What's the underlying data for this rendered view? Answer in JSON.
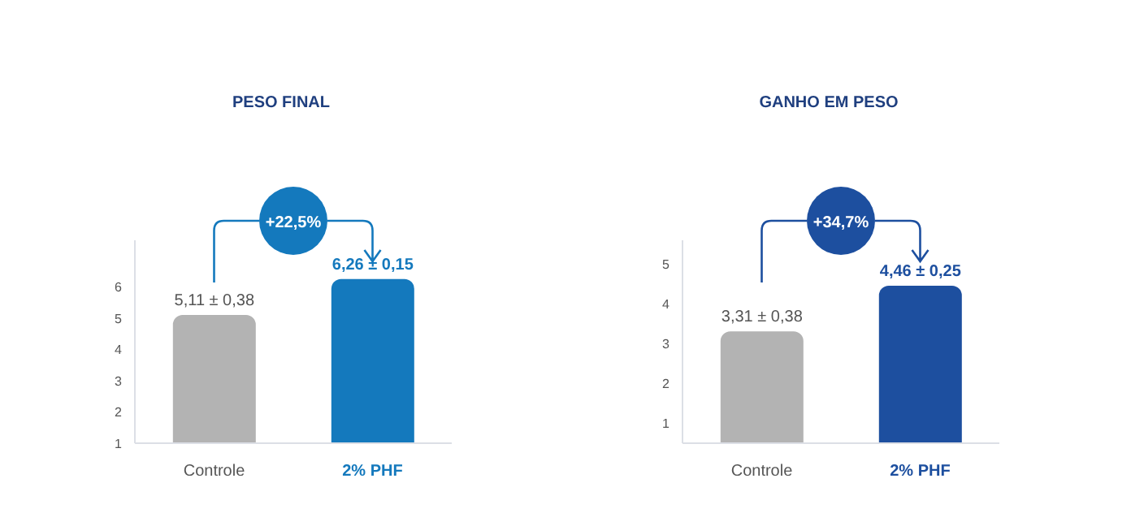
{
  "chart_data": [
    {
      "type": "bar",
      "title": "PESO FINAL",
      "categories": [
        "Controle",
        "2% PHF"
      ],
      "values": [
        5.11,
        6.26
      ],
      "value_labels": [
        "5,11 ± 0,38",
        "6,26 ± 0,15"
      ],
      "colors": [
        "#b3b3b3",
        "#1479bd"
      ],
      "ylim": [
        1,
        7.5
      ],
      "yticks": [
        1,
        2,
        3,
        4,
        5,
        6
      ],
      "grid": false,
      "legend": false,
      "annotations": [
        "+22,5%"
      ]
    },
    {
      "type": "bar",
      "title": "GANHO EM PESO",
      "categories": [
        "Controle",
        "2% PHF"
      ],
      "values": [
        3.31,
        4.46
      ],
      "value_labels": [
        "3,31 ± 0,38",
        "4,46 ± 0,25"
      ],
      "colors": [
        "#b3b3b3",
        "#1d4f9f"
      ],
      "ylim": [
        0.5,
        5.6
      ],
      "yticks": [
        1,
        2,
        3,
        4,
        5
      ],
      "grid": false,
      "legend": false,
      "annotations": [
        "+34,7%"
      ]
    }
  ]
}
